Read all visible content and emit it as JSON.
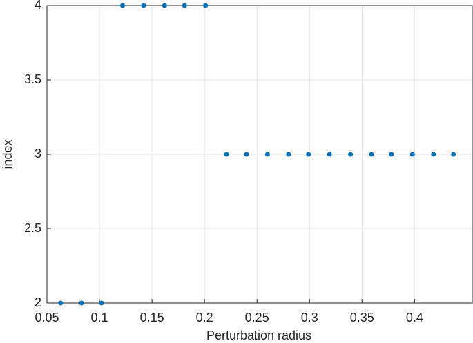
{
  "chart_data": {
    "type": "scatter",
    "xlabel": "Perturbation radius",
    "ylabel": "index",
    "x": [
      0.063,
      0.083,
      0.102,
      0.122,
      0.142,
      0.162,
      0.181,
      0.201,
      0.221,
      0.24,
      0.26,
      0.28,
      0.299,
      0.319,
      0.339,
      0.359,
      0.378,
      0.398,
      0.418,
      0.437
    ],
    "values": [
      2,
      2,
      2,
      4,
      4,
      4,
      4,
      4,
      3,
      3,
      3,
      3,
      3,
      3,
      3,
      3,
      3,
      3,
      3,
      3
    ],
    "color": "#0072bd",
    "xlim": [
      0.05,
      0.455
    ],
    "xticks": [
      0.05,
      0.1,
      0.15,
      0.2,
      0.25,
      0.3,
      0.35,
      0.4
    ],
    "ylim": [
      2,
      4
    ],
    "yticks": [
      2,
      2.5,
      3,
      3.5,
      4
    ],
    "grid": true
  }
}
